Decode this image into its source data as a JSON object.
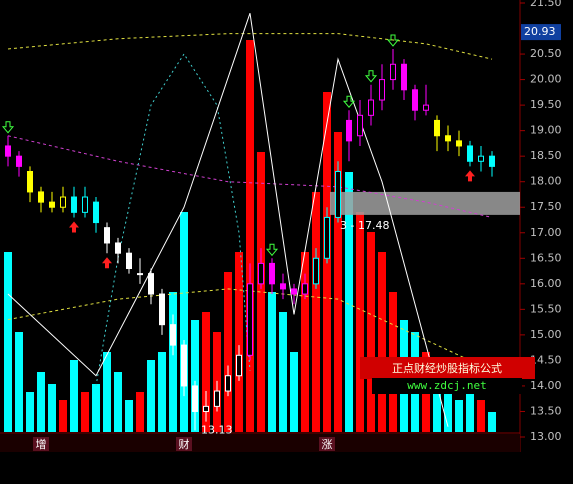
{
  "chart_data": {
    "type": "candlestick",
    "ylim": [
      13,
      21.5
    ],
    "yticks": [
      {
        "value": 13,
        "label": "13.00"
      },
      {
        "value": 13.5,
        "label": "13.50"
      },
      {
        "value": 14,
        "label": "14.00"
      },
      {
        "value": 14.5,
        "label": "14.50"
      },
      {
        "value": 15,
        "label": "15.00"
      },
      {
        "value": 15.5,
        "label": "15.50"
      },
      {
        "value": 16,
        "label": "16.00"
      },
      {
        "value": 16.5,
        "label": "16.50"
      },
      {
        "value": 17,
        "label": "17.00"
      },
      {
        "value": 17.5,
        "label": "17.50"
      },
      {
        "value": 18,
        "label": "18.00"
      },
      {
        "value": 18.5,
        "label": "18.50"
      },
      {
        "value": 19,
        "label": "19.00"
      },
      {
        "value": 19.5,
        "label": "19.50"
      },
      {
        "value": 20,
        "label": "20.00"
      },
      {
        "value": 20.5,
        "label": "20.50"
      },
      {
        "value": 21.5,
        "label": "21.50"
      }
    ],
    "current_price": 20.93,
    "candles": [
      {
        "open": 18.7,
        "high": 18.9,
        "low": 18.3,
        "close": 18.5,
        "volume": 45,
        "color": "#ff00ff"
      },
      {
        "open": 18.5,
        "high": 18.6,
        "low": 18.1,
        "close": 18.3,
        "volume": 25,
        "color": "#ff00ff"
      },
      {
        "open": 18.2,
        "high": 18.3,
        "low": 17.6,
        "close": 17.8,
        "volume": 10,
        "color": "#ffff00"
      },
      {
        "open": 17.8,
        "high": 17.9,
        "low": 17.4,
        "close": 17.6,
        "volume": 15,
        "color": "#ffff00"
      },
      {
        "open": 17.6,
        "high": 17.8,
        "low": 17.4,
        "close": 17.5,
        "volume": 12,
        "color": "#ffff00"
      },
      {
        "open": 17.5,
        "high": 17.9,
        "low": 17.4,
        "close": 17.7,
        "volume": 8,
        "color": "#ffff00"
      },
      {
        "open": 17.7,
        "high": 17.9,
        "low": 17.3,
        "close": 17.4,
        "volume": 18,
        "color": "#00ffff"
      },
      {
        "open": 17.4,
        "high": 17.9,
        "low": 17.3,
        "close": 17.7,
        "volume": 10,
        "color": "#00ffff"
      },
      {
        "open": 17.6,
        "high": 17.7,
        "low": 17.0,
        "close": 17.2,
        "volume": 12,
        "color": "#00ffff"
      },
      {
        "open": 17.1,
        "high": 17.2,
        "low": 16.6,
        "close": 16.8,
        "volume": 20,
        "color": "#ffffff"
      },
      {
        "open": 16.8,
        "high": 16.9,
        "low": 16.4,
        "close": 16.6,
        "volume": 15,
        "color": "#ffffff"
      },
      {
        "open": 16.6,
        "high": 16.7,
        "low": 16.2,
        "close": 16.3,
        "volume": 8,
        "color": "#ffffff"
      },
      {
        "open": 16.2,
        "high": 16.5,
        "low": 16.0,
        "close": 16.2,
        "volume": 10,
        "color": "#ffffff"
      },
      {
        "open": 16.2,
        "high": 16.3,
        "low": 15.6,
        "close": 15.8,
        "volume": 18,
        "color": "#ffffff"
      },
      {
        "open": 15.8,
        "high": 15.9,
        "low": 15.0,
        "close": 15.2,
        "volume": 20,
        "color": "#ffffff"
      },
      {
        "open": 15.2,
        "high": 15.4,
        "low": 14.6,
        "close": 14.8,
        "volume": 35,
        "color": "#ffffff"
      },
      {
        "open": 14.8,
        "high": 14.9,
        "low": 13.8,
        "close": 14.0,
        "volume": 55,
        "color": "#ffffff"
      },
      {
        "open": 14.0,
        "high": 14.1,
        "low": 13.13,
        "close": 13.5,
        "volume": 28,
        "color": "#ffffff"
      },
      {
        "open": 13.5,
        "high": 13.9,
        "low": 13.3,
        "close": 13.6,
        "volume": 30,
        "color": "#ffffff"
      },
      {
        "open": 13.6,
        "high": 14.1,
        "low": 13.5,
        "close": 13.9,
        "volume": 25,
        "color": "#ffffff"
      },
      {
        "open": 13.9,
        "high": 14.4,
        "low": 13.8,
        "close": 14.2,
        "volume": 40,
        "color": "#ffffff"
      },
      {
        "open": 14.2,
        "high": 14.8,
        "low": 14.1,
        "close": 14.6,
        "volume": 45,
        "color": "#ffffff"
      },
      {
        "open": 14.6,
        "high": 16.4,
        "low": 14.5,
        "close": 16.0,
        "volume": 98,
        "color": "#ff00ff"
      },
      {
        "open": 16.0,
        "high": 16.7,
        "low": 15.9,
        "close": 16.4,
        "volume": 70,
        "color": "#ff00ff"
      },
      {
        "open": 16.4,
        "high": 16.5,
        "low": 15.8,
        "close": 16.0,
        "volume": 35,
        "color": "#ff00ff"
      },
      {
        "open": 16.0,
        "high": 16.2,
        "low": 15.7,
        "close": 15.9,
        "volume": 30,
        "color": "#ff00ff"
      },
      {
        "open": 15.9,
        "high": 16.0,
        "low": 15.6,
        "close": 15.8,
        "volume": 20,
        "color": "#ff00ff"
      },
      {
        "open": 15.8,
        "high": 16.2,
        "low": 15.7,
        "close": 16.0,
        "volume": 45,
        "color": "#ff00ff"
      },
      {
        "open": 16.0,
        "high": 16.7,
        "low": 15.9,
        "close": 16.5,
        "volume": 60,
        "color": "#00ffff"
      },
      {
        "open": 16.5,
        "high": 17.5,
        "low": 16.4,
        "close": 17.3,
        "volume": 85,
        "color": "#00ffff"
      },
      {
        "open": 17.3,
        "high": 18.4,
        "low": 17.2,
        "close": 18.2,
        "volume": 75,
        "color": "#00ffff"
      },
      {
        "open": 19.2,
        "high": 19.4,
        "low": 18.4,
        "close": 18.8,
        "volume": 65,
        "color": "#ff00ff"
      },
      {
        "open": 18.9,
        "high": 19.6,
        "low": 18.7,
        "close": 19.3,
        "volume": 55,
        "color": "#ff00ff"
      },
      {
        "open": 19.3,
        "high": 19.9,
        "low": 19.1,
        "close": 19.6,
        "volume": 50,
        "color": "#ff00ff"
      },
      {
        "open": 19.6,
        "high": 20.3,
        "low": 19.4,
        "close": 20.0,
        "volume": 45,
        "color": "#ff00ff"
      },
      {
        "open": 20.0,
        "high": 20.6,
        "low": 19.8,
        "close": 20.3,
        "volume": 35,
        "color": "#ff00ff"
      },
      {
        "open": 20.3,
        "high": 20.4,
        "low": 19.6,
        "close": 19.8,
        "volume": 28,
        "color": "#ff00ff"
      },
      {
        "open": 19.8,
        "high": 19.9,
        "low": 19.2,
        "close": 19.4,
        "volume": 25,
        "color": "#ff00ff"
      },
      {
        "open": 19.4,
        "high": 19.9,
        "low": 19.3,
        "close": 19.5,
        "volume": 20,
        "color": "#ff00ff"
      },
      {
        "open": 19.2,
        "high": 19.3,
        "low": 18.6,
        "close": 18.9,
        "volume": 15,
        "color": "#ffff00"
      },
      {
        "open": 18.9,
        "high": 19.1,
        "low": 18.6,
        "close": 18.8,
        "volume": 10,
        "color": "#ffff00"
      },
      {
        "open": 18.8,
        "high": 19.0,
        "low": 18.5,
        "close": 18.7,
        "volume": 8,
        "color": "#ffff00"
      },
      {
        "open": 18.7,
        "high": 18.8,
        "low": 18.3,
        "close": 18.4,
        "volume": 12,
        "color": "#00ffff"
      },
      {
        "open": 18.4,
        "high": 18.7,
        "low": 18.2,
        "close": 18.5,
        "volume": 8,
        "color": "#00ffff"
      },
      {
        "open": 18.5,
        "high": 18.6,
        "low": 18.1,
        "close": 18.3,
        "volume": 5,
        "color": "#00ffff"
      }
    ],
    "lines": [
      {
        "color": "#e0e040",
        "dash": "3 3",
        "x": [
          0,
          10,
          20,
          30,
          38,
          44
        ],
        "values": [
          20.6,
          20.8,
          20.9,
          20.9,
          20.7,
          20.4
        ]
      },
      {
        "color": "#d040d0",
        "dash": "3 3",
        "x": [
          0,
          10,
          20,
          30,
          38,
          44
        ],
        "values": [
          18.9,
          18.4,
          18.0,
          17.9,
          17.6,
          17.3
        ]
      },
      {
        "color": "#e0e040",
        "dash": "3 3",
        "x": [
          0,
          10,
          20,
          30,
          40,
          44
        ],
        "values": [
          15.3,
          15.7,
          15.9,
          15.7,
          14.7,
          14.3
        ]
      },
      {
        "color": "#40d0d0",
        "dash": "2 3",
        "x": [
          8,
          10,
          13,
          16,
          19,
          21,
          22
        ],
        "values": [
          14.0,
          16.5,
          19.5,
          20.5,
          19.5,
          17.0,
          14.3
        ]
      },
      {
        "color": "#ffffff",
        "dash": "",
        "x": [
          0,
          8,
          16,
          22,
          26,
          30,
          34,
          40
        ],
        "values": [
          15.8,
          14.2,
          17.5,
          21.3,
          15.4,
          20.4,
          18.0,
          13.2
        ]
      }
    ],
    "signals": [
      {
        "index": 0,
        "type": "sell"
      },
      {
        "index": 24,
        "type": "sell"
      },
      {
        "index": 31,
        "type": "sell"
      },
      {
        "index": 33,
        "type": "sell"
      },
      {
        "index": 35,
        "type": "sell"
      },
      {
        "index": 6,
        "type": "buy"
      },
      {
        "index": 9,
        "type": "buy"
      },
      {
        "index": 42,
        "type": "buy"
      }
    ],
    "low_mark": {
      "index": 17,
      "value": 13.13
    },
    "highlight": {
      "from": 17.35,
      "to": 17.8,
      "label": "3 - 17.48"
    },
    "markers": [
      {
        "index": 3,
        "label": "增"
      },
      {
        "index": 16,
        "label": "财"
      },
      {
        "index": 29,
        "label": "涨"
      }
    ],
    "watermark": {
      "title": "正点财经炒股指标公式",
      "url": "www.zdcj.net"
    }
  }
}
